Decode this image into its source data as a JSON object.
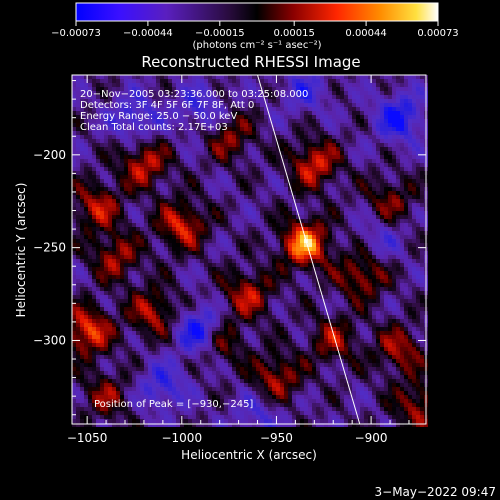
{
  "chart_data": {
    "type": "heatmap",
    "title": "Reconstructed RHESSI Image",
    "xlabel": "Heliocentric X (arcsec)",
    "ylabel": "Heliocentric Y (arcsec)",
    "xlim": [
      -1058,
      -871
    ],
    "ylim": [
      -345,
      -157
    ],
    "x_ticks": [
      -1050,
      -1000,
      -950,
      -900
    ],
    "y_ticks": [
      -200,
      -250,
      -300
    ],
    "x_tick_labels": [
      "−1050",
      "−1000",
      "−950",
      "−900"
    ],
    "y_tick_labels": [
      "−200",
      "−250",
      "−300"
    ],
    "colorbar": {
      "min": -0.00073,
      "max": 0.00073,
      "ticks": [
        -0.00073,
        -0.00044,
        -0.00015,
        0.00015,
        0.00044,
        0.00073
      ],
      "tick_labels": [
        "−0.00073",
        "−0.00044",
        "−0.00015",
        "0.00015",
        "0.00044",
        "0.00073"
      ],
      "unit_label": "(photons cm⁻² s⁻¹ asec⁻²)"
    },
    "annotations": [
      "20−Nov−2005 03:23:36.000 to 03:25:08.000",
      "Detectors: 3F 4F 5F 6F 7F 8F, Att 0",
      "Energy Range: 25.0 − 50.0 keV",
      "Clean    Total counts: 2.17E+03"
    ],
    "peak_label": "Position of Peak = [−930,−245]",
    "peak": [
      -930,
      -245
    ],
    "limb_line": [
      [
        -960,
        -157
      ],
      [
        -906,
        -345
      ]
    ],
    "hot_spots": [
      {
        "x": -935,
        "y": -248,
        "v": 1.0
      },
      {
        "x": -930,
        "y": -205,
        "v": 0.7
      },
      {
        "x": -1020,
        "y": -205,
        "v": 0.65
      },
      {
        "x": -1000,
        "y": -238,
        "v": 0.7
      },
      {
        "x": -1045,
        "y": -228,
        "v": 0.6
      },
      {
        "x": -1050,
        "y": -295,
        "v": 0.8
      },
      {
        "x": -965,
        "y": -275,
        "v": 0.6
      },
      {
        "x": -905,
        "y": -265,
        "v": 0.6
      },
      {
        "x": -980,
        "y": -300,
        "v": 0.55
      },
      {
        "x": -1015,
        "y": -285,
        "v": 0.6
      },
      {
        "x": -1035,
        "y": -255,
        "v": 0.55
      },
      {
        "x": -885,
        "y": -305,
        "v": 0.55
      },
      {
        "x": -975,
        "y": -190,
        "v": 0.5
      },
      {
        "x": -950,
        "y": -320,
        "v": 0.6
      },
      {
        "x": -875,
        "y": -335,
        "v": 0.55
      },
      {
        "x": -920,
        "y": -300,
        "v": 0.5
      },
      {
        "x": -1040,
        "y": -330,
        "v": 0.45
      },
      {
        "x": -890,
        "y": -225,
        "v": 0.45
      }
    ],
    "cold_spots": [
      {
        "x": -990,
        "y": -295,
        "v": -0.8
      },
      {
        "x": -1025,
        "y": -180,
        "v": -0.5
      },
      {
        "x": -990,
        "y": -175,
        "v": -0.45
      },
      {
        "x": -885,
        "y": -180,
        "v": -0.7
      },
      {
        "x": -935,
        "y": -165,
        "v": -0.4
      },
      {
        "x": -1010,
        "y": -325,
        "v": -0.5
      },
      {
        "x": -895,
        "y": -245,
        "v": -0.3
      },
      {
        "x": -960,
        "y": -340,
        "v": -0.35
      }
    ]
  },
  "timestamp": "3−May−2022 09:47"
}
